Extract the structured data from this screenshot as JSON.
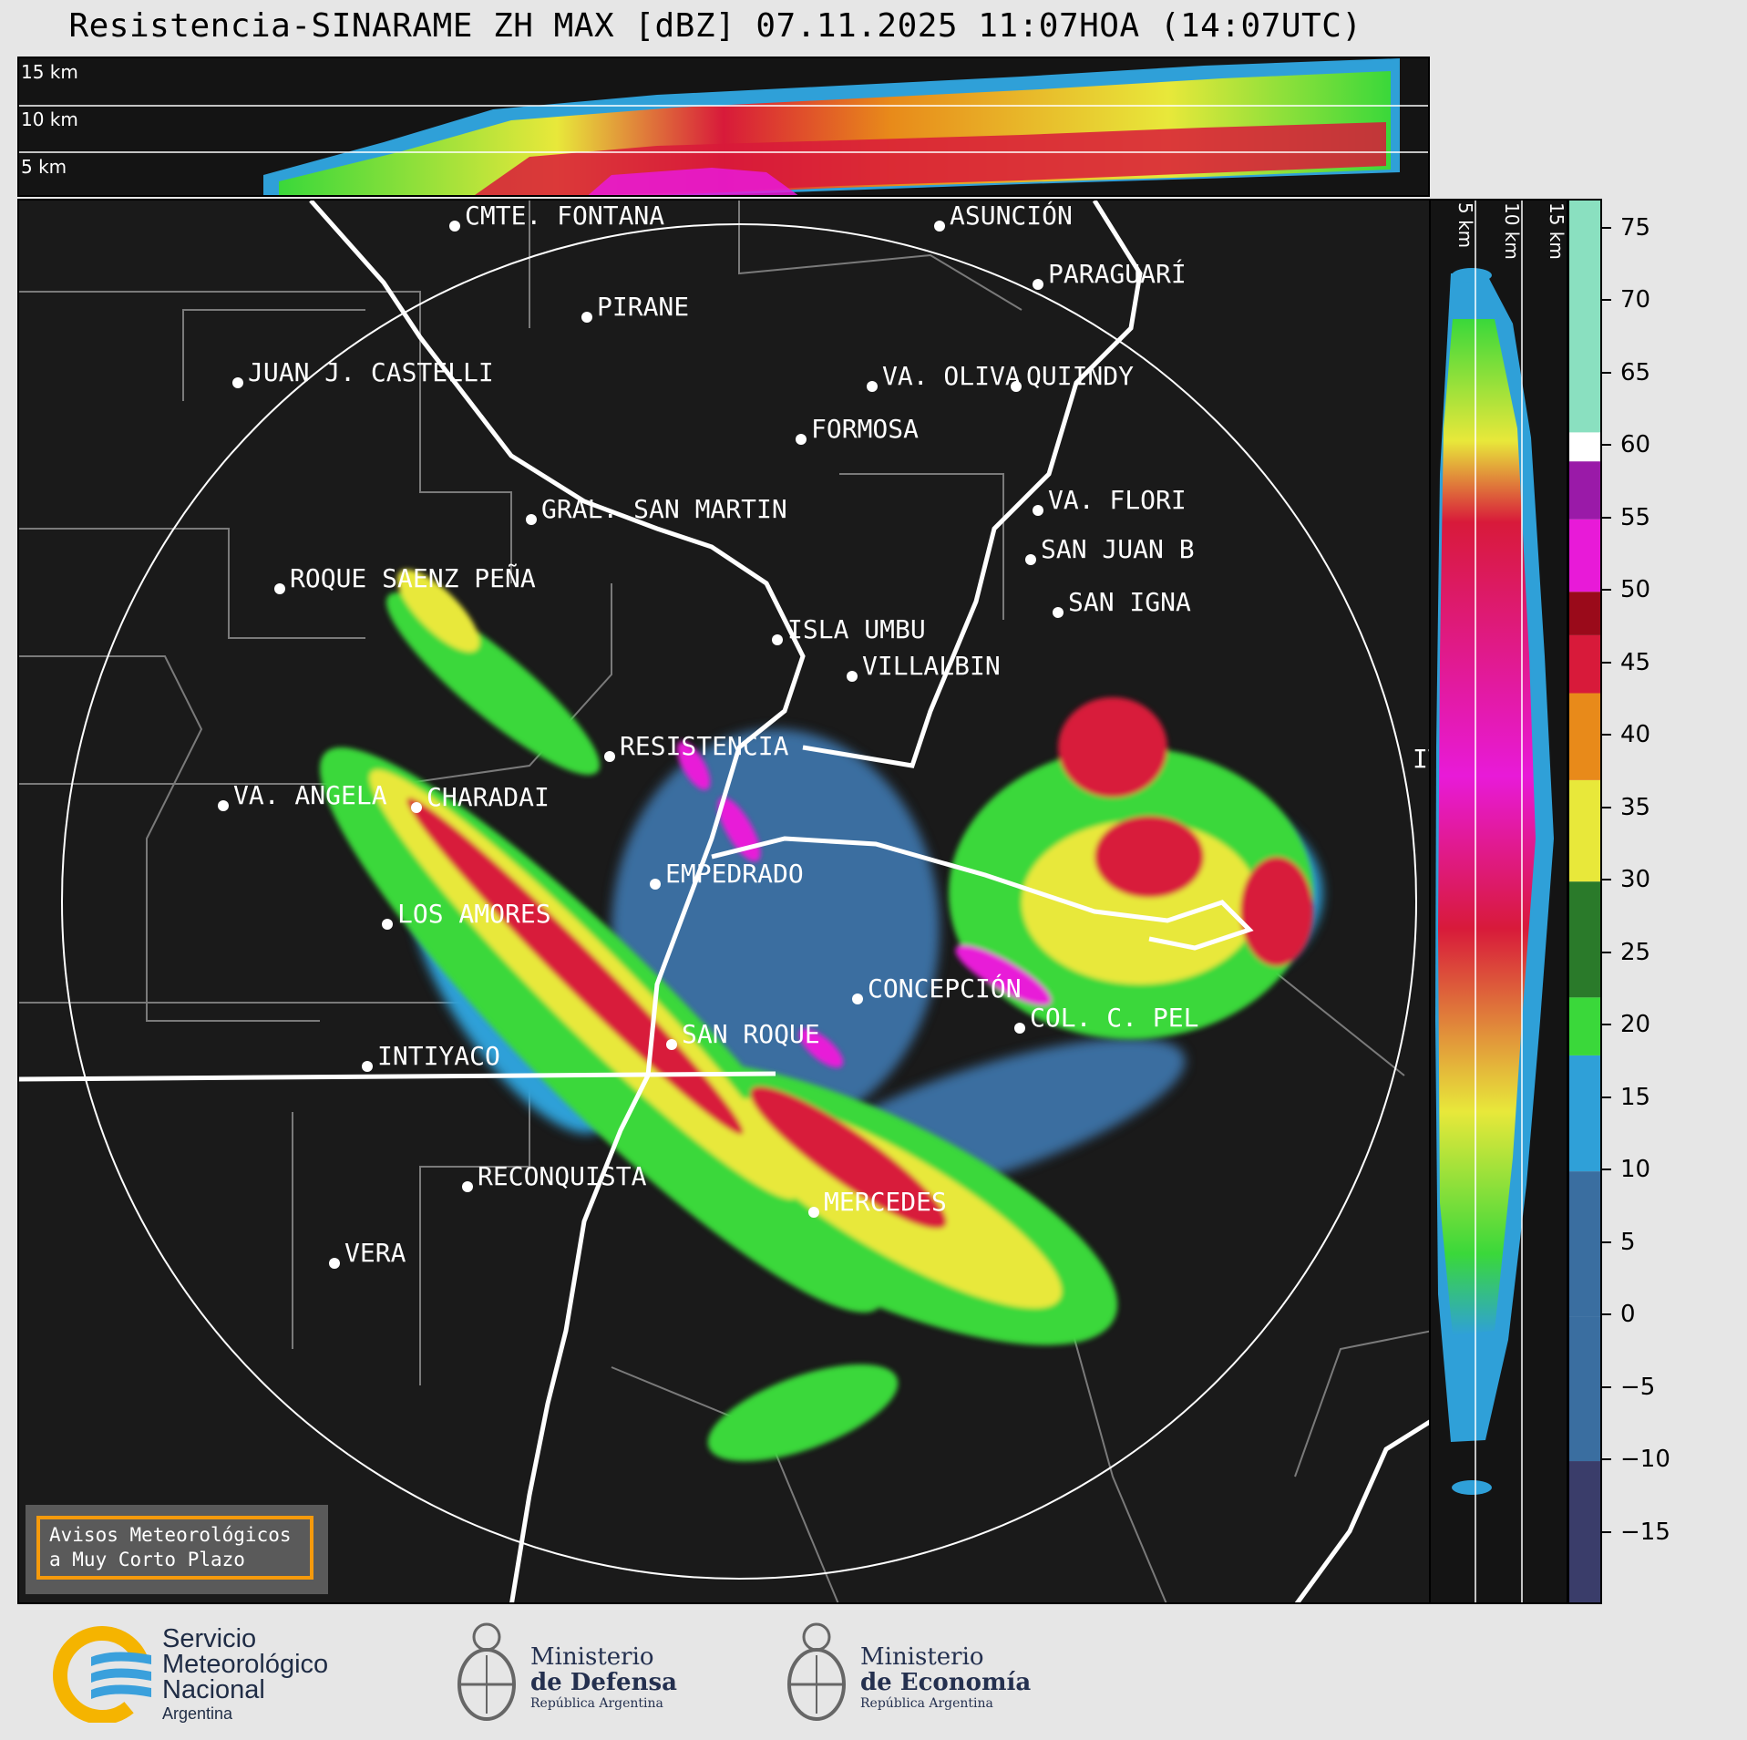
{
  "title": "Resistencia-SINARAME ZH MAX [dBZ] 07.11.2025 11:07HOA (14:07UTC)",
  "top_panel": {
    "height_labels": [
      "15 km",
      "10 km",
      "5 km"
    ]
  },
  "right_panel": {
    "height_labels": [
      "5 km",
      "10 km",
      "15 km"
    ]
  },
  "cities": [
    {
      "name": "CMTE. FONTANA"
    },
    {
      "name": "ASUNCIÓN"
    },
    {
      "name": "PARAGUARÍ"
    },
    {
      "name": "PIRANE"
    },
    {
      "name": "JUAN J. CASTELLI"
    },
    {
      "name": "VA. OLIVA"
    },
    {
      "name": "QUIINDY"
    },
    {
      "name": "FORMOSA"
    },
    {
      "name": "VA. FLORI"
    },
    {
      "name": "GRAL. SAN MARTIN"
    },
    {
      "name": "SAN JUAN B"
    },
    {
      "name": "ROQUE SAENZ PEÑA"
    },
    {
      "name": "SAN IGNA"
    },
    {
      "name": "ISLA UMBU"
    },
    {
      "name": "VILLALBIN"
    },
    {
      "name": "RESISTENCIA"
    },
    {
      "name": "VA. ANGELA"
    },
    {
      "name": "CHARADAI"
    },
    {
      "name": "IT"
    },
    {
      "name": "EMPEDRADO"
    },
    {
      "name": "LOS AMORES"
    },
    {
      "name": "CONCEPCIÓN"
    },
    {
      "name": "SAN ROQUE"
    },
    {
      "name": "COL. C. PEL"
    },
    {
      "name": "INTIYACO"
    },
    {
      "name": "RECONQUISTA"
    },
    {
      "name": "MERCEDES"
    },
    {
      "name": "VERA"
    }
  ],
  "colorbar": {
    "unit": "dBZ",
    "ticks": [
      "75",
      "70",
      "65",
      "60",
      "55",
      "50",
      "45",
      "40",
      "35",
      "30",
      "25",
      "20",
      "15",
      "10",
      "5",
      "0",
      "−5",
      "−10",
      "−15"
    ],
    "range": [
      -20,
      77
    ],
    "colors": {
      "very_low": "#3a3d6a",
      "low": "#3a6ea0",
      "mid_low": "#2fa0d8",
      "green": "#3ad83a",
      "dark_green": "#2a7a2a",
      "yellow": "#e8e83a",
      "orange": "#e88a1a",
      "red": "#d81a3a",
      "dark_red": "#9a0a1a",
      "magenta": "#e81ad8",
      "purple": "#9a1aa8",
      "white": "#ffffff",
      "mint": "#8ae0c0"
    }
  },
  "warning_box": {
    "line1": "Avisos Meteorológicos",
    "line2": "a Muy Corto Plazo"
  },
  "logos": [
    {
      "lines": [
        "Servicio",
        "Meteorológico",
        "Nacional",
        "Argentina"
      ],
      "icon": "smn-logo"
    },
    {
      "lines": [
        "Ministerio",
        "de Defensa",
        "República Argentina"
      ],
      "icon": "coat-of-arms-icon"
    },
    {
      "lines": [
        "Ministerio",
        "de Economía",
        "República Argentina"
      ],
      "icon": "coat-of-arms-icon"
    }
  ]
}
